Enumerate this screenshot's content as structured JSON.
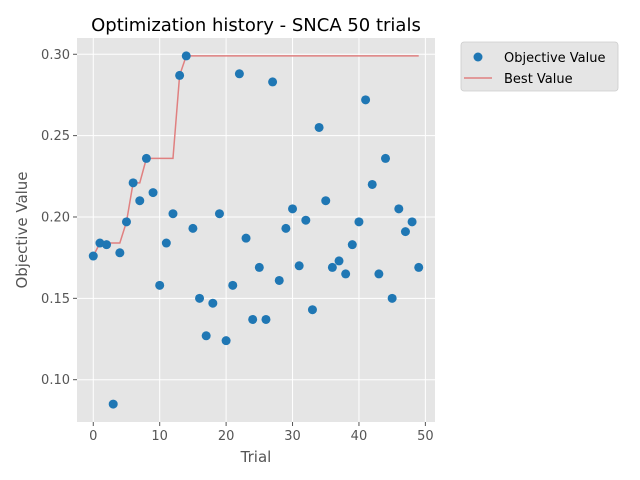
{
  "chart_data": {
    "type": "scatter",
    "title": "Optimization history - SNCA 50 trials",
    "xlabel": "Trial",
    "ylabel": "Objective Value",
    "xlim": [
      -2.45,
      51.45
    ],
    "ylim": [
      0.074,
      0.31
    ],
    "xticks": [
      0,
      10,
      20,
      30,
      40,
      50
    ],
    "xtick_labels": [
      "0",
      "10",
      "20",
      "30",
      "40",
      "50"
    ],
    "yticks": [
      0.1,
      0.15,
      0.2,
      0.25,
      0.3
    ],
    "ytick_labels": [
      "0.10",
      "0.15",
      "0.20",
      "0.25",
      "0.30"
    ],
    "grid": true,
    "legend_placement": "outside-top-right",
    "series": [
      {
        "name": "Objective Value",
        "kind": "scatter",
        "color": "#1f77b4",
        "x": [
          0,
          1,
          2,
          3,
          4,
          5,
          6,
          7,
          8,
          9,
          10,
          11,
          12,
          13,
          14,
          15,
          16,
          17,
          18,
          19,
          20,
          21,
          22,
          23,
          24,
          25,
          26,
          27,
          28,
          29,
          30,
          31,
          32,
          33,
          34,
          35,
          36,
          37,
          38,
          39,
          40,
          41,
          42,
          43,
          44,
          45,
          46,
          47,
          48,
          49
        ],
        "y": [
          0.176,
          0.184,
          0.183,
          0.085,
          0.178,
          0.197,
          0.221,
          0.21,
          0.236,
          0.215,
          0.158,
          0.184,
          0.202,
          0.287,
          0.299,
          0.193,
          0.15,
          0.127,
          0.147,
          0.202,
          0.124,
          0.158,
          0.288,
          0.187,
          0.137,
          0.169,
          0.137,
          0.283,
          0.161,
          0.193,
          0.205,
          0.17,
          0.198,
          0.143,
          0.255,
          0.21,
          0.169,
          0.173,
          0.165,
          0.183,
          0.197,
          0.272,
          0.22,
          0.165,
          0.236,
          0.15,
          0.205,
          0.191,
          0.197,
          0.169
        ]
      },
      {
        "name": "Best Value",
        "kind": "step-line",
        "color": "#e08080",
        "x": [
          0,
          1,
          4,
          5,
          6,
          7,
          8,
          12,
          13,
          14,
          49
        ],
        "y": [
          0.176,
          0.184,
          0.184,
          0.197,
          0.221,
          0.221,
          0.236,
          0.236,
          0.287,
          0.299,
          0.299
        ]
      }
    ]
  }
}
